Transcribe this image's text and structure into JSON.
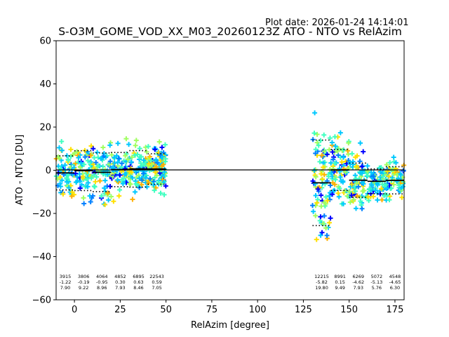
{
  "plot_date": "Plot date: 2026-01-24 14:14:01",
  "chart_data": {
    "type": "scatter",
    "title": "S-O3M_GOME_VOD_XX_M03_20260123Z ATO - NTO vs RelAzim",
    "xlabel": "RelAzim [degree]",
    "ylabel": "ATO - NTO [DU]",
    "xlim": [
      -10,
      180
    ],
    "ylim": [
      -60,
      60
    ],
    "xticks": [
      0,
      25,
      50,
      75,
      100,
      125,
      150,
      175
    ],
    "yticks": [
      -60,
      -40,
      -20,
      0,
      20,
      40,
      60
    ],
    "zero_line": 0,
    "bin_edges": [
      -10,
      0,
      10,
      20,
      30,
      40,
      50,
      130,
      140,
      150,
      160,
      170,
      180
    ],
    "bin_stats": [
      {
        "x_range": [
          -10,
          0
        ],
        "count": "3915",
        "mean": "-1.22",
        "std": "7.90"
      },
      {
        "x_range": [
          0,
          10
        ],
        "count": "3806",
        "mean": "-0.19",
        "std": "9.22"
      },
      {
        "x_range": [
          10,
          20
        ],
        "count": "4064",
        "mean": "-0.95",
        "std": "8.96"
      },
      {
        "x_range": [
          20,
          30
        ],
        "count": "4852",
        "mean": "0.30",
        "std": "7.93"
      },
      {
        "x_range": [
          30,
          40
        ],
        "count": "6895",
        "mean": "0.63",
        "std": "8.46"
      },
      {
        "x_range": [
          40,
          50
        ],
        "count": "22543",
        "mean": "0.59",
        "std": "7.05"
      },
      {
        "x_range": [
          130,
          140
        ],
        "count": "12215",
        "mean": "-5.82",
        "std": "19.80"
      },
      {
        "x_range": [
          140,
          150
        ],
        "count": "8991",
        "mean": "0.15",
        "std": "9.49"
      },
      {
        "x_range": [
          150,
          160
        ],
        "count": "6269",
        "mean": "-4.62",
        "std": "7.93"
      },
      {
        "x_range": [
          160,
          170
        ],
        "count": "5072",
        "mean": "-5.13",
        "std": "5.76"
      },
      {
        "x_range": [
          170,
          180
        ],
        "count": "4548",
        "mean": "-4.65",
        "std": "6.30"
      }
    ],
    "scatter_regions": [
      {
        "x_range": [
          -10,
          50
        ],
        "y_range": [
          -30,
          30
        ]
      },
      {
        "x_range": [
          131,
          180
        ],
        "y_range": [
          -60,
          58
        ]
      }
    ],
    "colormap": [
      "#0000ff",
      "#0080ff",
      "#00c8ff",
      "#40ffc0",
      "#a0ff60",
      "#ffe000",
      "#ffb000"
    ]
  }
}
